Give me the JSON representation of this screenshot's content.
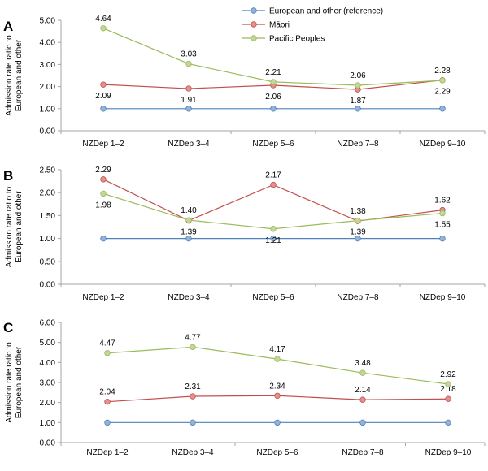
{
  "legend": [
    {
      "name": "European and other (reference)",
      "color": "#4f81bd",
      "fill": "#95b3d7"
    },
    {
      "name": "Māori",
      "color": "#c0504d",
      "fill": "#e6908e"
    },
    {
      "name": "Pacific Peoples",
      "color": "#9bbb59",
      "fill": "#c3d69b"
    }
  ],
  "chart_data": [
    {
      "panel": "A",
      "type": "line",
      "ylabel": "Admission rate ratio to European and other",
      "categories": [
        "NZDep 1–2",
        "NZDep 3–4",
        "NZDep 5–6",
        "NZDep 7–8",
        "NZDep 9–10"
      ],
      "ylim": [
        0,
        5
      ],
      "yticks": [
        "0.00",
        "1.00",
        "2.00",
        "3.00",
        "4.00",
        "5.00"
      ],
      "series": [
        {
          "name": "European and other (reference)",
          "values": [
            1,
            1,
            1,
            1,
            1
          ],
          "labels": [
            "",
            "",
            "",
            "",
            ""
          ]
        },
        {
          "name": "Māori",
          "values": [
            2.09,
            1.91,
            2.06,
            1.87,
            2.29
          ],
          "labels": [
            "2.09",
            "1.91",
            "2.06",
            "1.87",
            "2.29"
          ]
        },
        {
          "name": "Pacific Peoples",
          "values": [
            4.64,
            3.03,
            2.21,
            2.06,
            2.28
          ],
          "labels": [
            "4.64",
            "3.03",
            "2.21",
            "2.06",
            "2.28"
          ]
        }
      ]
    },
    {
      "panel": "B",
      "type": "line",
      "ylabel": "Admission rate ratio to European and other",
      "categories": [
        "NZDep 1–2",
        "NZDep 3–4",
        "NZDep 5–6",
        "NZDep 7–8",
        "NZDep 9–10"
      ],
      "ylim": [
        0,
        2.5
      ],
      "yticks": [
        "0.00",
        "0.50",
        "1.00",
        "1.50",
        "2.00",
        "2.50"
      ],
      "series": [
        {
          "name": "European and other (reference)",
          "values": [
            1,
            1,
            1,
            1,
            1
          ],
          "labels": [
            "",
            "",
            "",
            "",
            ""
          ]
        },
        {
          "name": "Māori",
          "values": [
            2.29,
            1.39,
            2.17,
            1.38,
            1.62
          ],
          "labels": [
            "2.29",
            "1.39",
            "2.17",
            "1.38",
            "1.62"
          ]
        },
        {
          "name": "Pacific Peoples",
          "values": [
            1.98,
            1.4,
            1.21,
            1.39,
            1.55
          ],
          "labels": [
            "1.98",
            "1.40",
            "1.21",
            "1.39",
            "1.55"
          ]
        }
      ]
    },
    {
      "panel": "C",
      "type": "line",
      "ylabel": "Admission rate ratio to European and other",
      "categories": [
        "NZDep 1–2",
        "NZDep 3–4",
        "NZDep 5–6",
        "NZDep 7–8",
        "NZDep 9–10"
      ],
      "ylim": [
        0,
        6
      ],
      "yticks": [
        "0.00",
        "1.00",
        "2.00",
        "3.00",
        "4.00",
        "5.00",
        "6.00"
      ],
      "series": [
        {
          "name": "European and other (reference)",
          "values": [
            1,
            1,
            1,
            1,
            1
          ],
          "labels": [
            "",
            "",
            "",
            "",
            ""
          ]
        },
        {
          "name": "Māori",
          "values": [
            2.04,
            2.31,
            2.34,
            2.14,
            2.18
          ],
          "labels": [
            "2.04",
            "2.31",
            "2.34",
            "2.14",
            "2.18"
          ]
        },
        {
          "name": "Pacific Peoples",
          "values": [
            4.47,
            4.77,
            4.17,
            3.48,
            2.92
          ],
          "labels": [
            "4.47",
            "4.77",
            "4.17",
            "3.48",
            "2.92"
          ]
        }
      ]
    }
  ]
}
